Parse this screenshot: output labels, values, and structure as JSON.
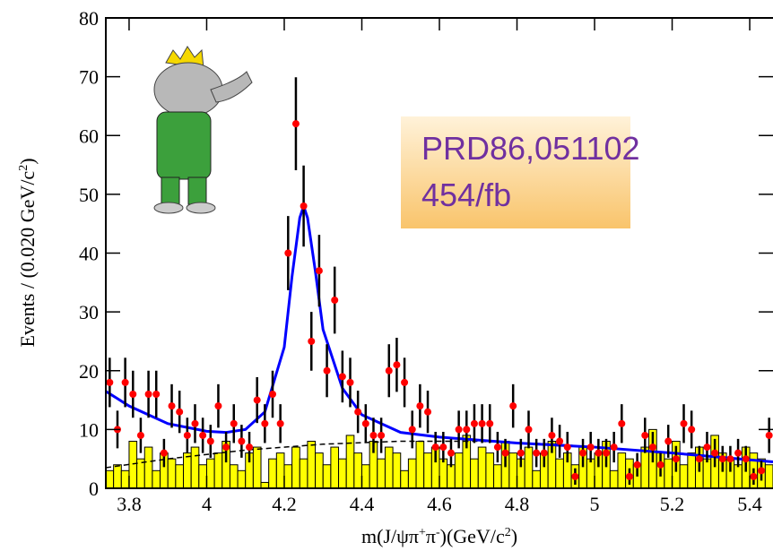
{
  "chart_data": {
    "type": "errorbar",
    "y_label": [
      "Events / (0.020 GeV/c",
      "2",
      ")"
    ],
    "x_label": [
      "m(J/ψπ",
      "+",
      "π",
      "-",
      ")(GeV/c",
      "2",
      ")"
    ],
    "annotation": [
      "PRD86,051102",
      "454/fb"
    ],
    "xlim": [
      3.74,
      5.46
    ],
    "ylim": [
      0,
      80
    ],
    "xticks": [
      3.8,
      4,
      4.2,
      4.4,
      4.6,
      4.8,
      5,
      5.2,
      5.4
    ],
    "yticks": [
      0,
      10,
      20,
      30,
      40,
      50,
      60,
      70,
      80
    ],
    "histogram": {
      "color": "#ffff00",
      "bins": [
        3.74,
        3.76,
        3.78,
        3.8,
        3.82,
        3.84,
        3.86,
        3.88,
        3.9,
        3.92,
        3.94,
        3.96,
        3.98,
        4.0,
        4.02,
        4.04,
        4.06,
        4.08,
        4.1,
        4.12,
        4.14,
        4.16,
        4.18,
        4.2,
        4.22,
        4.24,
        4.26,
        4.28,
        4.3,
        4.32,
        4.34,
        4.36,
        4.38,
        4.4,
        4.42,
        4.44,
        4.46,
        4.48,
        4.5,
        4.52,
        4.54,
        4.56,
        4.58,
        4.6,
        4.62,
        4.64,
        4.66,
        4.68,
        4.7,
        4.72,
        4.74,
        4.76,
        4.78,
        4.8,
        4.82,
        4.84,
        4.86,
        4.88,
        4.9,
        4.92,
        4.94,
        4.96,
        4.98,
        5.0,
        5.02,
        5.04,
        5.06,
        5.08,
        5.1,
        5.12,
        5.14,
        5.16,
        5.18,
        5.2,
        5.22,
        5.24,
        5.26,
        5.28,
        5.3,
        5.32,
        5.34,
        5.36,
        5.38,
        5.4,
        5.42,
        5.44,
        5.46
      ],
      "counts": [
        3,
        4,
        3,
        8,
        5,
        7,
        3,
        6,
        5,
        4,
        6,
        7,
        4,
        5,
        6,
        8,
        4,
        3,
        6,
        7,
        1,
        5,
        6,
        4,
        7,
        5,
        8,
        6,
        4,
        7,
        5,
        9,
        6,
        4,
        8,
        5,
        7,
        6,
        3,
        5,
        8,
        6,
        7,
        5,
        4,
        6,
        9,
        5,
        7,
        6,
        4,
        8,
        6,
        5,
        7,
        3,
        6,
        8,
        5,
        6,
        4,
        7,
        5,
        6,
        8,
        3,
        6,
        5,
        4,
        7,
        10,
        6,
        5,
        8,
        4,
        6,
        7,
        5,
        9,
        6,
        5,
        4,
        7,
        6,
        5,
        4
      ]
    },
    "series": [
      {
        "kind": "points",
        "color": "#ff0000",
        "x": [
          3.75,
          3.77,
          3.79,
          3.81,
          3.83,
          3.85,
          3.87,
          3.89,
          3.91,
          3.93,
          3.95,
          3.97,
          3.99,
          4.01,
          4.03,
          4.05,
          4.07,
          4.09,
          4.11,
          4.13,
          4.15,
          4.17,
          4.19,
          4.21,
          4.23,
          4.25,
          4.27,
          4.29,
          4.31,
          4.33,
          4.35,
          4.37,
          4.39,
          4.41,
          4.43,
          4.45,
          4.47,
          4.49,
          4.51,
          4.53,
          4.55,
          4.57,
          4.59,
          4.61,
          4.63,
          4.65,
          4.67,
          4.69,
          4.71,
          4.73,
          4.75,
          4.77,
          4.79,
          4.81,
          4.83,
          4.85,
          4.87,
          4.89,
          4.91,
          4.93,
          4.95,
          4.97,
          4.99,
          5.01,
          5.03,
          5.05,
          5.07,
          5.09,
          5.11,
          5.13,
          5.15,
          5.17,
          5.19,
          5.21,
          5.23,
          5.25,
          5.27,
          5.29,
          5.31,
          5.33,
          5.35,
          5.37,
          5.39,
          5.41,
          5.43,
          5.45
        ],
        "values": [
          18,
          10,
          18,
          16,
          9,
          16,
          16,
          6,
          14,
          13,
          9,
          11,
          9,
          8,
          14,
          7,
          11,
          8,
          7,
          15,
          11,
          16,
          11,
          40,
          62,
          48,
          25,
          37,
          20,
          32,
          19,
          18,
          13,
          11,
          9,
          9,
          20,
          21,
          18,
          10,
          14,
          13,
          7,
          7,
          6,
          10,
          10,
          11,
          11,
          11,
          7,
          6,
          14,
          6,
          10,
          6,
          6,
          9,
          8,
          7,
          2,
          6,
          7,
          6,
          6,
          7,
          11,
          2,
          4,
          9,
          7,
          4,
          8,
          5,
          11,
          10,
          5,
          7,
          6,
          5,
          5,
          6,
          5,
          2,
          3,
          9
        ],
        "errors": [
          4.2,
          3.2,
          4.2,
          4,
          3,
          4,
          4,
          2.4,
          3.7,
          3.6,
          3,
          3.3,
          3,
          2.8,
          3.7,
          2.6,
          3.3,
          2.8,
          2.6,
          3.9,
          3.3,
          4,
          3.3,
          6.3,
          7.9,
          6.9,
          5,
          6.1,
          4.5,
          5.7,
          4.4,
          4.2,
          3.6,
          3.3,
          3,
          3,
          4.5,
          4.6,
          4.2,
          3.2,
          3.7,
          3.6,
          2.6,
          2.6,
          2.4,
          3.2,
          3.2,
          3.3,
          3.3,
          3.3,
          2.6,
          2.4,
          3.7,
          2.4,
          3.2,
          2.4,
          2.4,
          3,
          2.8,
          2.6,
          1.4,
          2.4,
          2.6,
          2.4,
          2.4,
          2.6,
          3.3,
          1.4,
          2,
          3,
          2.6,
          2,
          2.8,
          2.2,
          3.3,
          3.2,
          2.2,
          2.6,
          2.4,
          2.2,
          2.2,
          2.4,
          2.2,
          1.4,
          1.7,
          3
        ]
      },
      {
        "kind": "line",
        "color": "#0000ff",
        "x": [
          3.74,
          3.8,
          3.9,
          4.0,
          4.05,
          4.1,
          4.15,
          4.2,
          4.22,
          4.24,
          4.25,
          4.26,
          4.28,
          4.3,
          4.35,
          4.4,
          4.5,
          4.6,
          4.8,
          5.0,
          5.2,
          5.46
        ],
        "values": [
          16.5,
          14,
          11,
          9.7,
          9.5,
          10,
          13,
          24,
          36,
          46,
          48,
          46,
          37,
          27,
          17,
          12.5,
          9.5,
          8.7,
          7.7,
          7,
          6,
          4.5
        ]
      },
      {
        "kind": "dashed",
        "color": "#000000",
        "x": [
          3.74,
          3.9,
          4.1,
          4.3,
          4.5,
          4.7,
          4.9,
          5.1,
          5.3,
          5.46
        ],
        "values": [
          3.5,
          5,
          6.5,
          7.5,
          8,
          8,
          7.5,
          6.5,
          5.5,
          4.5
        ]
      }
    ]
  }
}
